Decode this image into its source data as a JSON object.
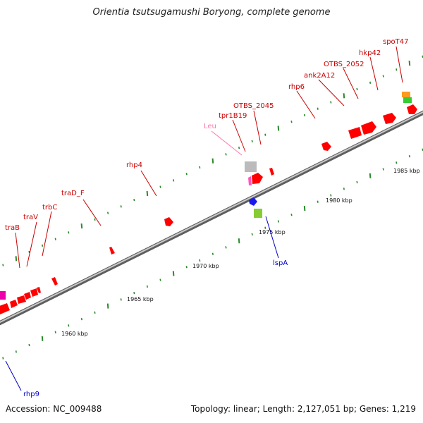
{
  "title": "Orientia tsutsugamushi Boryong, complete genome",
  "footer": {
    "accession": "Accession: NC_009488",
    "topology": "Topology: linear; Length: 2,127,051 bp; Genes: 1,219"
  },
  "colors": {
    "backbone": "#7a7a7a",
    "tick": "#2a8a2a",
    "label_red": "#cc0000",
    "label_blue": "#0000cc",
    "label_pink": "#ff77aa",
    "gene_red": "#ff0000",
    "gene_gray": "#bbbbbb",
    "gene_pink": "#ff55bb",
    "gene_blue": "#1a1aee",
    "gene_green": "#88cc33",
    "gene_orange": "#ff9922",
    "gene_lime": "#33cc33",
    "gene_magenta": "#ee00aa"
  },
  "scale_labels": [
    "1960 kbp",
    "1965 kbp",
    "1970 kbp",
    "1975 kbp",
    "1980 kbp",
    "1985 kbp"
  ],
  "gene_labels": {
    "traB": "traB",
    "traV": "traV",
    "trbC": "trbC",
    "traD_F": "traD_F",
    "rhp4": "rhp4",
    "Leu": "Leu",
    "tpr1B19": "tpr1B19",
    "OTBS_2045": "OTBS_2045",
    "rhp6": "rhp6",
    "ank2A12": "ank2A12",
    "OTBS_2052": "OTBS_2052",
    "hkp42": "hkp42",
    "spoT47": "spoT47",
    "lspA": "lspA",
    "rhp9": "rhp9"
  }
}
